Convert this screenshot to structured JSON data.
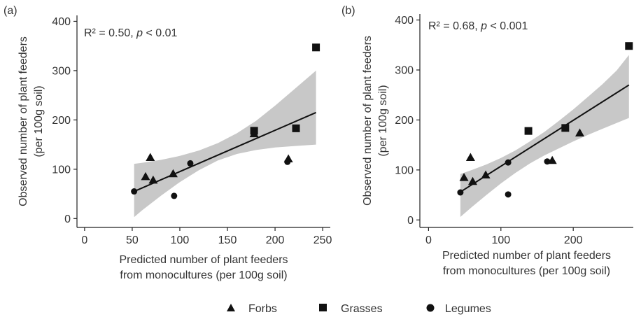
{
  "colors": {
    "band": "#c8c8c8",
    "ink": "#111111",
    "axis": "#222222",
    "text": "#333333"
  },
  "legend": {
    "placement": "bottom",
    "items": [
      {
        "label": "Forbs",
        "shape": "triangle"
      },
      {
        "label": "Grasses",
        "shape": "square"
      },
      {
        "label": "Legumes",
        "shape": "circle"
      }
    ]
  },
  "chart_data": [
    {
      "panel_label": "(a)",
      "type": "scatter",
      "annotation": {
        "r2": "R² = 0.50, ",
        "p": "p",
        "rest": " < 0.01"
      },
      "xlabel": [
        "Predicted number of plant feeders",
        "from monocultures (per 100g soil)"
      ],
      "ylabel": [
        "Observed number of plant feeders",
        "(per 100g soil)"
      ],
      "xlim": [
        -8,
        258
      ],
      "ylim": [
        -18,
        412
      ],
      "xticks": [
        0,
        50,
        100,
        150,
        200,
        250
      ],
      "yticks": [
        0,
        100,
        200,
        300,
        400
      ],
      "grid": false,
      "fit": {
        "x": [
          52,
          243
        ],
        "y": [
          55,
          215
        ]
      },
      "band": {
        "x": [
          52,
          60,
          80,
          100,
          120,
          140,
          160,
          180,
          200,
          220,
          243
        ],
        "lower": [
          3,
          16,
          46,
          74,
          98,
          118,
          131,
          139,
          144,
          147,
          150
        ],
        "upper": [
          111,
          113,
          119,
          127,
          138,
          153,
          173,
          198,
          229,
          262,
          300
        ]
      },
      "series": [
        {
          "name": "Forbs",
          "shape": "triangle",
          "points": [
            [
              64,
              85
            ],
            [
              69,
              124
            ],
            [
              72,
              78
            ],
            [
              93,
              91
            ],
            [
              178,
              172
            ],
            [
              214,
              121
            ]
          ]
        },
        {
          "name": "Grasses",
          "shape": "square",
          "points": [
            [
              178,
              178
            ],
            [
              222,
              183
            ],
            [
              243,
              347
            ]
          ]
        },
        {
          "name": "Legumes",
          "shape": "circle",
          "points": [
            [
              52,
              55
            ],
            [
              94,
              46
            ],
            [
              111,
              112
            ],
            [
              213,
              115
            ]
          ]
        }
      ]
    },
    {
      "panel_label": "(b)",
      "type": "scatter",
      "annotation": {
        "r2": "R² = 0.68, ",
        "p": "p",
        "rest": " < 0.001"
      },
      "xlabel": [
        "Predicted number of plant feeders",
        "from monocultures (per 100g soil)"
      ],
      "ylabel": [
        "Observed number of plant feeders",
        "(per 100g soil)"
      ],
      "xlim": [
        -12,
        283
      ],
      "ylim": [
        -15,
        412
      ],
      "xticks": [
        0,
        100,
        200
      ],
      "yticks": [
        0,
        100,
        200,
        300,
        400
      ],
      "grid": false,
      "fit": {
        "x": [
          44,
          277
        ],
        "y": [
          56,
          270
        ]
      },
      "band": {
        "x": [
          44,
          60,
          80,
          100,
          120,
          140,
          160,
          180,
          200,
          220,
          240,
          260,
          277
        ],
        "lower": [
          6,
          26,
          50,
          73,
          94,
          113,
          129,
          143,
          157,
          170,
          182,
          194,
          204
        ],
        "upper": [
          92,
          100,
          111,
          124,
          139,
          157,
          176,
          198,
          221,
          246,
          271,
          299,
          330
        ]
      },
      "series": [
        {
          "name": "Forbs",
          "shape": "triangle",
          "points": [
            [
              49,
              85
            ],
            [
              58,
              125
            ],
            [
              61,
              77
            ],
            [
              79,
              90
            ],
            [
              171,
              119
            ],
            [
              209,
              174
            ]
          ]
        },
        {
          "name": "Grasses",
          "shape": "square",
          "points": [
            [
              138,
              178
            ],
            [
              189,
              184
            ],
            [
              277,
              348
            ]
          ]
        },
        {
          "name": "Legumes",
          "shape": "circle",
          "points": [
            [
              44,
              55
            ],
            [
              110,
              51
            ],
            [
              110,
              115
            ],
            [
              164,
              117
            ]
          ]
        }
      ]
    }
  ]
}
